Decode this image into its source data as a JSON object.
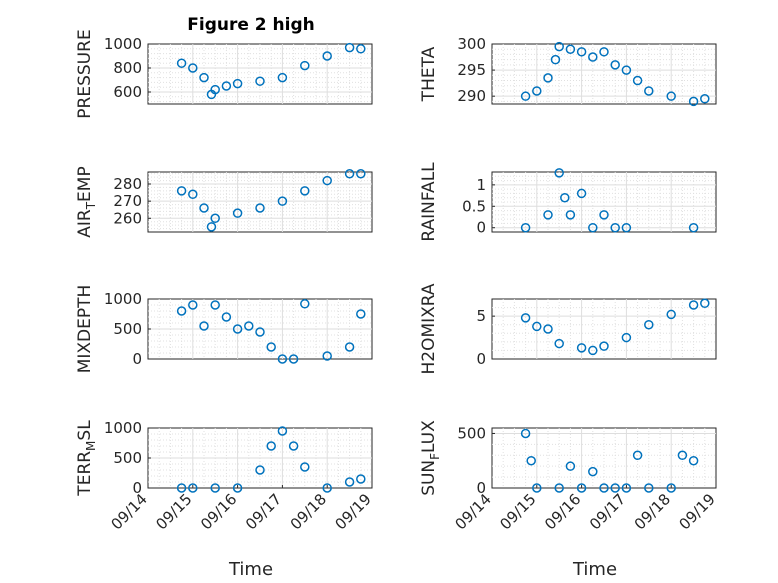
{
  "figure": {
    "title": "Figure 2 high",
    "xlabel": "Time",
    "colors": {
      "series": "#0072bd",
      "axes": "#262626",
      "background": "#ffffff"
    }
  },
  "chart_data": [
    {
      "type": "scatter",
      "panel": "pressure",
      "title": "Figure 2 high",
      "ylabel": "PRESSURE",
      "xlabel": "",
      "xlim": [
        "09/14",
        "09/19"
      ],
      "ylim": [
        500,
        1000
      ],
      "yticks": [
        600,
        800,
        1000
      ],
      "xticks": [],
      "grid": true,
      "series": [
        {
          "name": "",
          "x": [
            "09/14 18:00",
            "09/15 00:00",
            "09/15 06:00",
            "09/15 10:00",
            "09/15 12:00",
            "09/15 18:00",
            "09/16 00:00",
            "09/16 12:00",
            "09/17 00:00",
            "09/17 12:00",
            "09/18 00:00",
            "09/18 12:00",
            "09/18 18:00"
          ],
          "y": [
            840,
            800,
            720,
            580,
            620,
            650,
            670,
            690,
            720,
            820,
            900,
            970,
            960
          ]
        }
      ]
    },
    {
      "type": "scatter",
      "panel": "theta",
      "ylabel": "THETA",
      "xlabel": "",
      "xlim": [
        "09/14",
        "09/19"
      ],
      "ylim": [
        288.5,
        300
      ],
      "yticks": [
        290,
        295,
        300
      ],
      "xticks": [],
      "grid": true,
      "series": [
        {
          "name": "",
          "x": [
            "09/14 18:00",
            "09/15 00:00",
            "09/15 06:00",
            "09/15 10:00",
            "09/15 12:00",
            "09/15 18:00",
            "09/16 00:00",
            "09/16 06:00",
            "09/16 12:00",
            "09/16 18:00",
            "09/17 00:00",
            "09/17 06:00",
            "09/17 12:00",
            "09/18 00:00",
            "09/18 12:00",
            "09/18 18:00"
          ],
          "y": [
            290,
            291,
            293.5,
            297,
            299.5,
            299,
            298.5,
            297.5,
            298.5,
            296,
            295,
            293,
            291,
            290,
            289,
            289.5
          ]
        }
      ]
    },
    {
      "type": "scatter",
      "panel": "air-temp",
      "ylabel": "AIR_TEMP",
      "xlabel": "",
      "xlim": [
        "09/14",
        "09/19"
      ],
      "ylim": [
        252,
        287
      ],
      "yticks": [
        260,
        270,
        280
      ],
      "xticks": [],
      "grid": true,
      "series": [
        {
          "name": "",
          "x": [
            "09/14 18:00",
            "09/15 00:00",
            "09/15 06:00",
            "09/15 10:00",
            "09/15 12:00",
            "09/16 00:00",
            "09/16 12:00",
            "09/17 00:00",
            "09/17 12:00",
            "09/18 00:00",
            "09/18 12:00",
            "09/18 18:00"
          ],
          "y": [
            276,
            274,
            266,
            255,
            260,
            263,
            266,
            270,
            276,
            282,
            286,
            286
          ]
        }
      ]
    },
    {
      "type": "scatter",
      "panel": "rainfall",
      "ylabel": "RAINFALL",
      "xlabel": "",
      "xlim": [
        "09/14",
        "09/19"
      ],
      "ylim": [
        -0.1,
        1.3
      ],
      "yticks": [
        0,
        0.5,
        1
      ],
      "xticks": [],
      "grid": true,
      "series": [
        {
          "name": "",
          "x": [
            "09/14 18:00",
            "09/15 06:00",
            "09/15 12:00",
            "09/15 15:00",
            "09/15 18:00",
            "09/16 00:00",
            "09/16 06:00",
            "09/16 12:00",
            "09/16 18:00",
            "09/17 00:00",
            "09/18 12:00"
          ],
          "y": [
            0,
            0.3,
            1.28,
            0.7,
            0.3,
            0.8,
            0,
            0.3,
            0,
            0,
            0
          ]
        }
      ]
    },
    {
      "type": "scatter",
      "panel": "mixdepth",
      "ylabel": "MIXDEPTH",
      "xlabel": "",
      "xlim": [
        "09/14",
        "09/19"
      ],
      "ylim": [
        0,
        1000
      ],
      "yticks": [
        0,
        500,
        1000
      ],
      "xticks": [],
      "grid": true,
      "series": [
        {
          "name": "",
          "x": [
            "09/14 18:00",
            "09/15 00:00",
            "09/15 06:00",
            "09/15 12:00",
            "09/15 18:00",
            "09/16 00:00",
            "09/16 06:00",
            "09/16 12:00",
            "09/16 18:00",
            "09/17 00:00",
            "09/17 06:00",
            "09/17 12:00",
            "09/18 00:00",
            "09/18 12:00",
            "09/18 18:00"
          ],
          "y": [
            800,
            900,
            550,
            900,
            700,
            500,
            550,
            450,
            200,
            0,
            0,
            920,
            50,
            200,
            750
          ]
        }
      ]
    },
    {
      "type": "scatter",
      "panel": "h2omixra",
      "ylabel": "H2OMIXRA",
      "xlabel": "",
      "xlim": [
        "09/14",
        "09/19"
      ],
      "ylim": [
        0,
        7
      ],
      "yticks": [
        0,
        5
      ],
      "xticks": [],
      "grid": true,
      "series": [
        {
          "name": "",
          "x": [
            "09/14 18:00",
            "09/15 00:00",
            "09/15 06:00",
            "09/15 12:00",
            "09/16 00:00",
            "09/16 06:00",
            "09/16 12:00",
            "09/17 00:00",
            "09/17 12:00",
            "09/18 00:00",
            "09/18 12:00",
            "09/18 18:00"
          ],
          "y": [
            4.8,
            3.8,
            3.5,
            1.8,
            1.3,
            1.0,
            1.5,
            2.5,
            4.0,
            5.2,
            6.3,
            6.5
          ]
        }
      ]
    },
    {
      "type": "scatter",
      "panel": "terr-msl",
      "ylabel": "TERR_MSL",
      "xlabel": "Time",
      "xlim": [
        "09/14",
        "09/19"
      ],
      "ylim": [
        0,
        1000
      ],
      "yticks": [
        0,
        500,
        1000
      ],
      "xticks": [
        "09/14",
        "09/15",
        "09/16",
        "09/17",
        "09/18",
        "09/19"
      ],
      "grid": true,
      "series": [
        {
          "name": "",
          "x": [
            "09/14 18:00",
            "09/15 00:00",
            "09/15 12:00",
            "09/16 00:00",
            "09/16 12:00",
            "09/16 18:00",
            "09/17 00:00",
            "09/17 06:00",
            "09/17 12:00",
            "09/18 00:00",
            "09/18 12:00",
            "09/18 18:00"
          ],
          "y": [
            0,
            0,
            0,
            0,
            300,
            700,
            950,
            700,
            350,
            0,
            100,
            150
          ]
        }
      ]
    },
    {
      "type": "scatter",
      "panel": "sun-flux",
      "ylabel": "SUN_FLUX",
      "xlabel": "Time",
      "xlim": [
        "09/14",
        "09/19"
      ],
      "ylim": [
        0,
        550
      ],
      "yticks": [
        0,
        500
      ],
      "xticks": [
        "09/14",
        "09/15",
        "09/16",
        "09/17",
        "09/18",
        "09/19"
      ],
      "grid": true,
      "series": [
        {
          "name": "",
          "x": [
            "09/14 18:00",
            "09/14 21:00",
            "09/15 00:00",
            "09/15 12:00",
            "09/15 18:00",
            "09/16 00:00",
            "09/16 06:00",
            "09/16 12:00",
            "09/16 18:00",
            "09/17 00:00",
            "09/17 06:00",
            "09/17 12:00",
            "09/18 00:00",
            "09/18 06:00",
            "09/18 12:00"
          ],
          "y": [
            500,
            250,
            0,
            0,
            200,
            0,
            150,
            0,
            0,
            0,
            300,
            0,
            0,
            300,
            250
          ]
        }
      ]
    }
  ]
}
